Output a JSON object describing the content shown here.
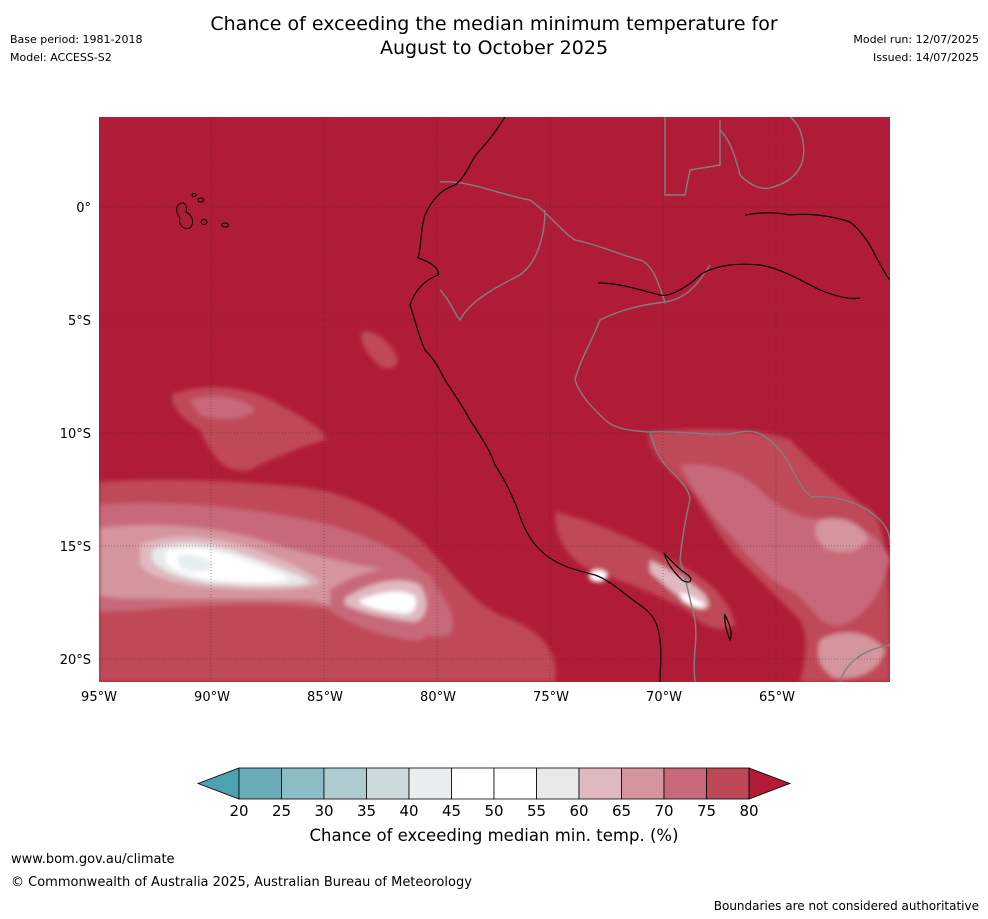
{
  "header": {
    "title_line1": "Chance of exceeding the median minimum temperature for",
    "title_line2": "August to October 2025",
    "base_period": "Base period: 1981-2018",
    "model": "Model: ACCESS-S2",
    "model_run": "Model run: 12/07/2025",
    "issued": "Issued: 14/07/2025"
  },
  "map": {
    "lat_labels": [
      "0°",
      "5°S",
      "10°S",
      "15°S",
      "20°S"
    ],
    "lon_labels": [
      "95°W",
      "90°W",
      "85°W",
      "80°W",
      "75°W",
      "70°W",
      "65°W"
    ],
    "base_color": "#b01c38",
    "coastline_color": "#000000",
    "border_color": "#808080"
  },
  "colorbar": {
    "ticks": [
      "20",
      "25",
      "30",
      "35",
      "40",
      "45",
      "50",
      "55",
      "60",
      "65",
      "70",
      "75",
      "80"
    ],
    "colors": [
      "#6aacb8",
      "#8cbcc6",
      "#aecbd0",
      "#cbd9dc",
      "#e8eef0",
      "#ffffff",
      "#ffffff",
      "#e9e9e9",
      "#dfb9bf",
      "#d4959e",
      "#c8697a",
      "#bf4858"
    ],
    "low_extend_color": "#4ca2b0",
    "high_extend_color": "#b01c38",
    "title": "Chance of exceeding median min. temp. (%)"
  },
  "footer": {
    "url": "www.bom.gov.au/climate",
    "copyright": "© Commonwealth of Australia 2025, Australian Bureau of Meteorology",
    "disclaimer": "Boundaries are not considered authoritative"
  }
}
